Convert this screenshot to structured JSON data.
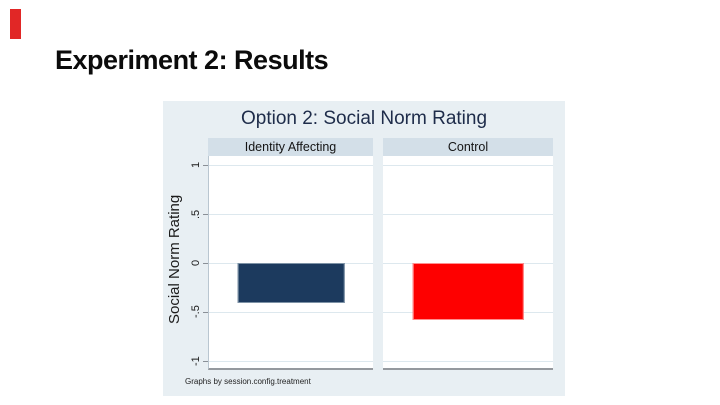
{
  "slide": {
    "title": "Experiment 2: Results",
    "accent_color": "#e12726"
  },
  "chart": {
    "title": "Option 2: Social Norm Rating",
    "ylabel": "Social Norm Rating",
    "footnote": "Graphs by session.config.treatment",
    "panels": [
      {
        "label": "Identity Affecting"
      },
      {
        "label": "Control"
      }
    ],
    "yticks": [
      "1",
      ".5",
      "0",
      "-.5",
      "-1"
    ]
  },
  "chart_data": {
    "type": "bar",
    "title": "Option 2: Social Norm Rating",
    "categories": [
      "Identity Affecting",
      "Control"
    ],
    "values": [
      -0.41,
      -0.58
    ],
    "series_colors": [
      "#1c3a5e",
      "#fe0000"
    ],
    "series_border_colors": [
      "#7d92a6",
      "#ff8f8f"
    ],
    "ylabel": "Social Norm Rating",
    "xlabel": "",
    "ylim": [
      -1.08,
      1.08
    ],
    "ytick_values": [
      1,
      0.5,
      0,
      -0.5,
      -1
    ],
    "grid": true,
    "legend": "none",
    "facet_by": "session.config.treatment",
    "facet_note": "Graphs by session.config.treatment",
    "background_color": "#e8eff3",
    "panel_header_color": "#d3dfe8",
    "title_color": "#1e2c4a"
  }
}
